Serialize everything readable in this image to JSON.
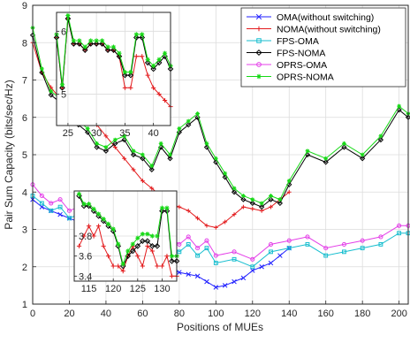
{
  "chart_data": {
    "type": "line",
    "xlabel": "Positions of MUEs",
    "ylabel": "Pair Sum Capacity (bits/sec/Hz)",
    "xlim": [
      0,
      205
    ],
    "ylim": [
      1,
      9
    ],
    "xticks": [
      0,
      20,
      40,
      60,
      80,
      100,
      120,
      140,
      160,
      180,
      200
    ],
    "yticks": [
      1,
      2,
      3,
      4,
      5,
      6,
      7,
      8,
      9
    ],
    "grid": true,
    "legend_position": "top-right",
    "series": [
      {
        "name": "OMA(without switching)",
        "color": "#1f1fff",
        "marker": "x",
        "x": [
          0,
          5,
          10,
          15,
          20,
          25,
          30,
          35,
          40,
          45,
          50,
          55,
          60,
          65,
          70,
          75,
          80,
          85,
          90,
          95,
          100,
          105,
          110,
          115,
          120,
          125,
          130,
          135,
          140
        ],
        "y": [
          3.8,
          3.6,
          3.5,
          3.4,
          3.3,
          3.2,
          3.1,
          3.0,
          2.9,
          2.8,
          2.7,
          2.6,
          2.4,
          2.2,
          2.0,
          1.9,
          1.85,
          1.8,
          1.75,
          1.6,
          1.45,
          1.5,
          1.6,
          1.7,
          1.9,
          2.0,
          2.1,
          2.3,
          2.5
        ]
      },
      {
        "name": "NOMA(without switching)",
        "color": "#e31a1c",
        "marker": "+",
        "x": [
          0,
          5,
          10,
          15,
          20,
          25,
          30,
          35,
          40,
          45,
          50,
          55,
          60,
          65,
          70,
          75,
          80,
          85,
          90,
          95,
          100,
          105,
          110,
          115,
          120,
          125,
          130,
          135,
          140
        ],
        "y": [
          8.0,
          7.2,
          6.8,
          6.5,
          6.3,
          6.2,
          6.0,
          5.8,
          5.5,
          5.2,
          4.9,
          4.6,
          4.3,
          4.1,
          3.9,
          3.7,
          3.6,
          3.5,
          3.3,
          3.1,
          3.05,
          3.2,
          3.4,
          3.6,
          3.55,
          3.5,
          3.6,
          3.8,
          4.0
        ]
      },
      {
        "name": "FPS-OMA",
        "color": "#17becf",
        "marker": "square",
        "x": [
          0,
          5,
          10,
          15,
          20,
          25,
          30,
          35,
          40,
          45,
          50,
          55,
          60,
          65,
          70,
          75,
          80,
          85,
          90,
          95,
          100,
          110,
          120,
          130,
          140,
          150,
          160,
          170,
          180,
          190,
          200,
          205
        ],
        "y": [
          3.9,
          3.7,
          3.5,
          3.6,
          3.3,
          3.4,
          3.2,
          3.1,
          3.0,
          2.9,
          2.8,
          2.7,
          2.8,
          2.6,
          2.5,
          2.6,
          2.4,
          2.6,
          2.3,
          2.5,
          2.1,
          2.2,
          2.0,
          2.4,
          2.5,
          2.6,
          2.3,
          2.4,
          2.5,
          2.6,
          2.9,
          2.9
        ]
      },
      {
        "name": "FPS-NOMA",
        "color": "#000000",
        "marker": "diamond",
        "x": [
          0,
          5,
          10,
          15,
          20,
          25,
          30,
          35,
          40,
          45,
          50,
          55,
          60,
          65,
          70,
          75,
          80,
          85,
          90,
          95,
          100,
          105,
          110,
          115,
          120,
          125,
          130,
          135,
          140,
          150,
          160,
          170,
          180,
          190,
          200,
          205
        ],
        "y": [
          8.2,
          7.2,
          6.6,
          6.4,
          6.2,
          5.8,
          5.6,
          5.2,
          5.1,
          5.3,
          5.4,
          5.0,
          4.9,
          4.6,
          5.2,
          4.9,
          5.6,
          5.8,
          6.0,
          5.2,
          4.8,
          4.4,
          4.0,
          3.8,
          3.7,
          3.6,
          3.8,
          3.7,
          4.2,
          5.0,
          4.8,
          5.2,
          4.9,
          5.4,
          6.2,
          6.0
        ]
      },
      {
        "name": "OPRS-OMA",
        "color": "#e43fe8",
        "marker": "circle",
        "x": [
          0,
          5,
          10,
          15,
          20,
          25,
          30,
          35,
          40,
          45,
          50,
          55,
          60,
          65,
          70,
          75,
          80,
          85,
          90,
          95,
          100,
          110,
          120,
          130,
          140,
          150,
          160,
          170,
          180,
          190,
          200,
          205
        ],
        "y": [
          4.2,
          3.9,
          3.7,
          3.8,
          3.5,
          3.6,
          3.4,
          3.3,
          3.2,
          3.1,
          3.0,
          2.9,
          3.0,
          2.8,
          2.7,
          2.8,
          2.6,
          2.8,
          2.5,
          2.7,
          2.3,
          2.4,
          2.2,
          2.6,
          2.7,
          2.8,
          2.5,
          2.6,
          2.7,
          2.8,
          3.1,
          3.1
        ]
      },
      {
        "name": "OPRS-NOMA",
        "color": "#16d916",
        "marker": "star",
        "x": [
          0,
          5,
          10,
          15,
          20,
          25,
          30,
          35,
          40,
          45,
          50,
          55,
          60,
          65,
          70,
          75,
          80,
          85,
          90,
          95,
          100,
          105,
          110,
          115,
          120,
          125,
          130,
          135,
          140,
          150,
          160,
          170,
          180,
          190,
          200,
          205
        ],
        "y": [
          8.4,
          7.3,
          6.7,
          6.5,
          6.3,
          5.9,
          5.7,
          5.3,
          5.2,
          5.4,
          5.5,
          5.1,
          5.0,
          4.7,
          5.3,
          5.0,
          5.7,
          5.9,
          6.1,
          5.3,
          4.9,
          4.5,
          4.1,
          3.9,
          3.8,
          3.7,
          3.9,
          3.8,
          4.3,
          5.1,
          4.9,
          5.3,
          5.0,
          5.5,
          6.3,
          6.1
        ]
      }
    ],
    "insets": [
      {
        "xlim": [
          23,
          43
        ],
        "ylim": [
          4.5,
          6.3
        ],
        "xticks": [
          25,
          30,
          35,
          40
        ],
        "yticks": [
          5,
          6
        ],
        "series": [
          {
            "ref": "NOMA(without switching)",
            "x": [
              23,
              24,
              25,
              26,
              27,
              28,
              29,
              30,
              31,
              32,
              33,
              34,
              35,
              36,
              37,
              38,
              39,
              40,
              41,
              42,
              43
            ],
            "y": [
              5.9,
              5.1,
              6.2,
              5.8,
              5.8,
              5.7,
              5.8,
              5.8,
              5.8,
              5.7,
              5.7,
              5.6,
              5.1,
              5.1,
              5.6,
              5.6,
              5.3,
              5.1,
              5.0,
              4.9,
              4.8
            ]
          },
          {
            "ref": "FPS-NOMA",
            "x": [
              23,
              24,
              25,
              26,
              27,
              28,
              29,
              30,
              31,
              32,
              33,
              34,
              35,
              36,
              37,
              38,
              39,
              40,
              41,
              42,
              43
            ],
            "y": [
              5.9,
              5.1,
              6.2,
              5.8,
              5.8,
              5.7,
              5.8,
              5.8,
              5.8,
              5.7,
              5.7,
              5.6,
              5.3,
              5.3,
              5.9,
              5.9,
              5.5,
              5.4,
              5.5,
              5.6,
              5.4
            ]
          },
          {
            "ref": "OPRS-NOMA",
            "x": [
              23,
              24,
              25,
              26,
              27,
              28,
              29,
              30,
              31,
              32,
              33,
              34,
              35,
              36,
              37,
              38,
              39,
              40,
              41,
              42,
              43
            ],
            "y": [
              5.95,
              5.15,
              6.25,
              5.85,
              5.85,
              5.75,
              5.85,
              5.85,
              5.85,
              5.75,
              5.75,
              5.65,
              5.35,
              5.35,
              5.95,
              5.95,
              5.55,
              5.45,
              5.55,
              5.65,
              5.45
            ]
          }
        ]
      },
      {
        "xlim": [
          112,
          133
        ],
        "ylim": [
          3.35,
          4.25
        ],
        "xticks": [
          115,
          120,
          125,
          130
        ],
        "yticks": [
          3.4,
          3.6,
          3.8
        ],
        "series": [
          {
            "ref": "NOMA(without switching)",
            "x": [
              113,
              114,
              115,
              116,
              117,
              118,
              119,
              120,
              121,
              122,
              123,
              124,
              125,
              126,
              127,
              128,
              129,
              130,
              131,
              132,
              133
            ],
            "y": [
              3.7,
              3.8,
              3.9,
              3.8,
              3.9,
              3.7,
              3.6,
              3.5,
              3.5,
              3.45,
              3.6,
              3.7,
              3.6,
              3.5,
              3.7,
              3.65,
              3.5,
              3.5,
              3.6,
              3.4,
              3.4
            ]
          },
          {
            "ref": "FPS-NOMA",
            "x": [
              113,
              114,
              115,
              116,
              117,
              118,
              119,
              120,
              121,
              122,
              123,
              124,
              125,
              126,
              127,
              128,
              129,
              130,
              131,
              132,
              133
            ],
            "y": [
              4.2,
              4.1,
              4.1,
              4.05,
              4.0,
              3.95,
              3.9,
              3.85,
              3.7,
              3.5,
              3.6,
              3.65,
              3.7,
              3.75,
              3.75,
              3.7,
              3.7,
              4.05,
              4.05,
              3.55,
              3.55
            ]
          },
          {
            "ref": "OPRS-NOMA",
            "x": [
              113,
              114,
              115,
              116,
              117,
              118,
              119,
              120,
              121,
              122,
              123,
              124,
              125,
              126,
              127,
              128,
              129,
              130,
              131,
              132,
              133
            ],
            "y": [
              4.22,
              4.12,
              4.12,
              4.07,
              4.02,
              3.97,
              3.92,
              3.87,
              3.72,
              3.52,
              3.65,
              3.72,
              3.78,
              3.82,
              3.82,
              3.8,
              3.8,
              4.08,
              4.08,
              3.6,
              3.6
            ]
          }
        ]
      }
    ]
  }
}
